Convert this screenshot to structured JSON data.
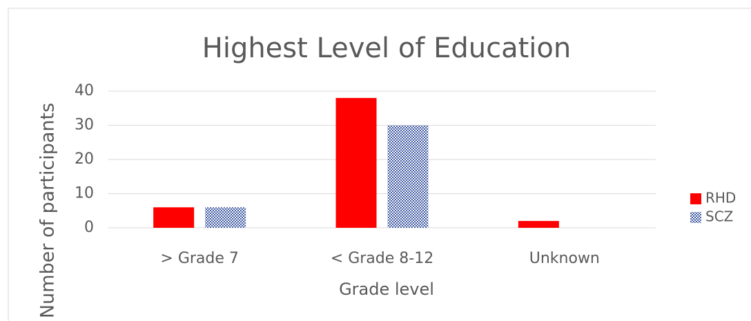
{
  "chart_data": {
    "type": "bar",
    "title": "Highest Level of Education",
    "x_label": "Grade level",
    "y_label": "Number of participants",
    "categories": [
      "> Grade 7",
      "< Grade 8-12",
      "Unknown"
    ],
    "series": [
      {
        "name": "RHD",
        "color": "#ff0000",
        "values": [
          6,
          38,
          2
        ]
      },
      {
        "name": "SCZ",
        "color": "#2e4b9b",
        "values": [
          6,
          30,
          0
        ]
      }
    ],
    "ylim": [
      0,
      40
    ],
    "yticks": [
      0,
      10,
      20,
      30,
      40
    ],
    "grid": true,
    "legend": "right"
  }
}
